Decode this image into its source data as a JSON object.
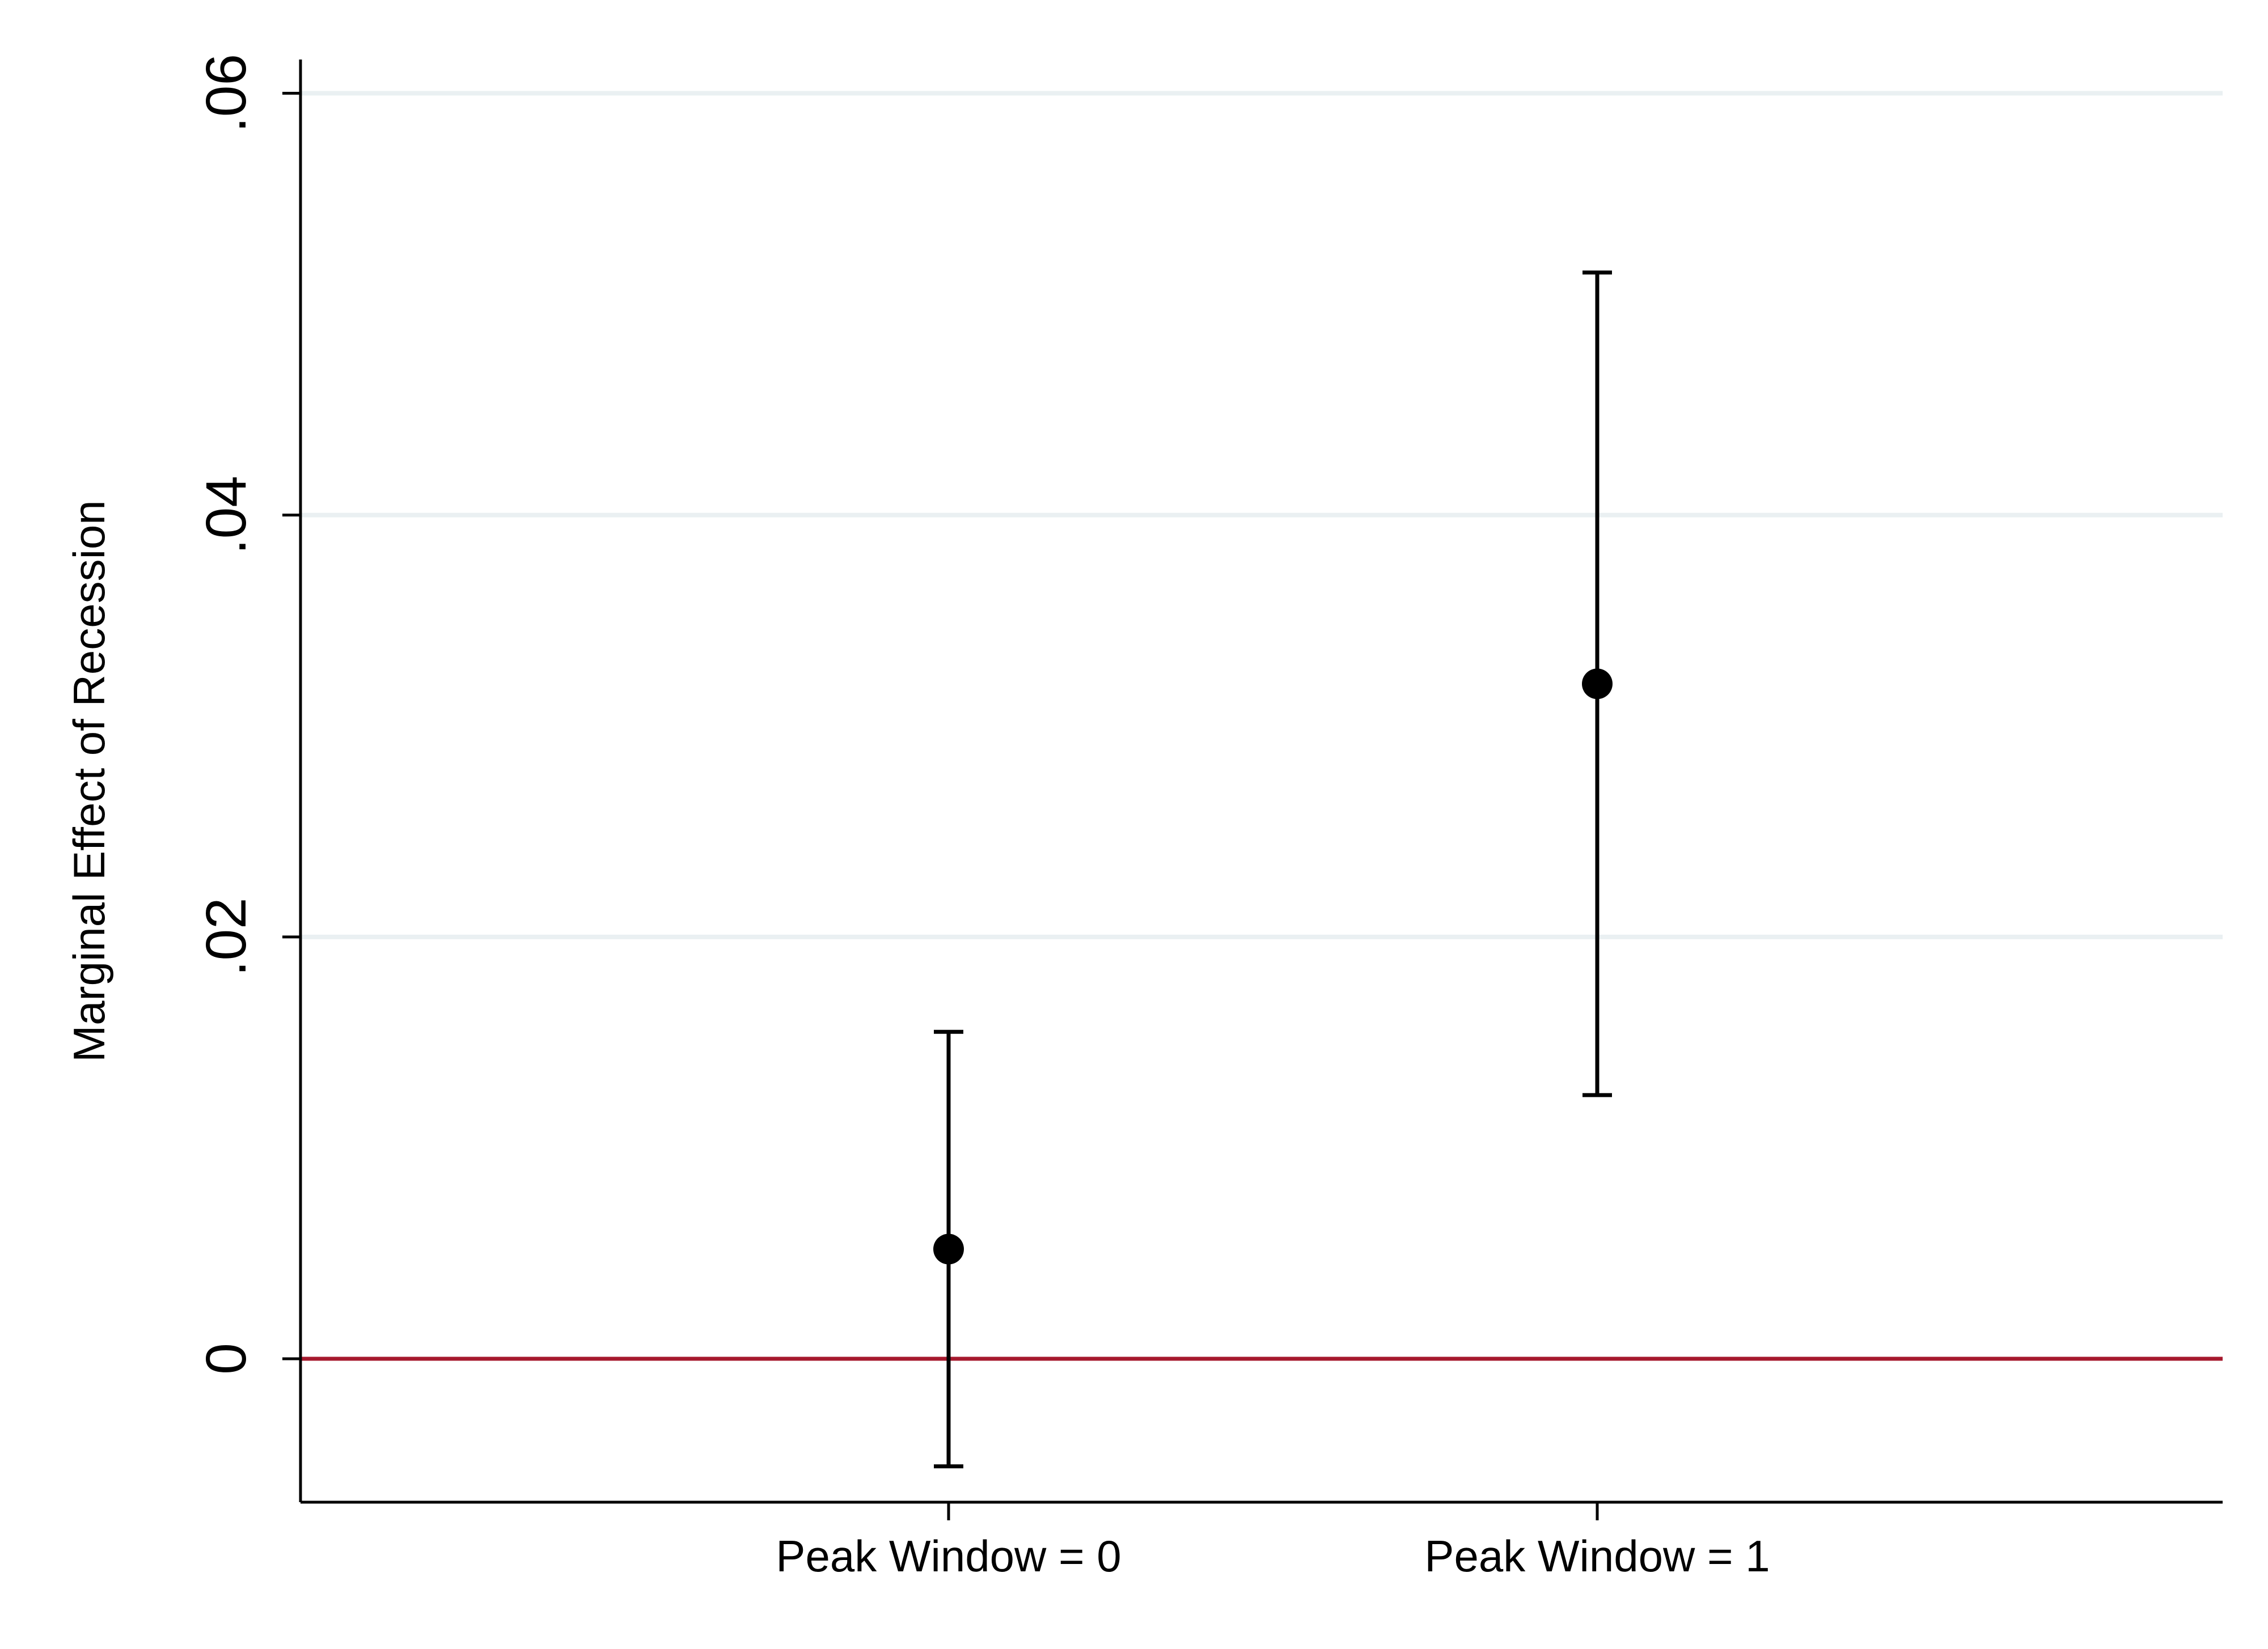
{
  "chart_data": {
    "type": "scatter",
    "title": "",
    "xlabel": "",
    "ylabel": "Marginal Effect of Recession",
    "categories": [
      "Peak Window = 0",
      "Peak Window = 1"
    ],
    "points": [
      {
        "category": "Peak Window = 0",
        "estimate": 0.0052,
        "ci_low": -0.0051,
        "ci_high": 0.0155
      },
      {
        "category": "Peak Window = 1",
        "estimate": 0.032,
        "ci_low": 0.0125,
        "ci_high": 0.0515
      }
    ],
    "ylim": [
      -0.0068,
      0.0616
    ],
    "yticks": [
      {
        "value": 0,
        "label": "0"
      },
      {
        "value": 0.02,
        "label": ".02"
      },
      {
        "value": 0.04,
        "label": ".04"
      },
      {
        "value": 0.06,
        "label": ".06"
      }
    ],
    "reference_line": {
      "value": 0,
      "color": "#A6192E"
    },
    "grid": true,
    "grid_color": "#EAF0F2",
    "marker_color": "#000000",
    "legend": "none"
  }
}
